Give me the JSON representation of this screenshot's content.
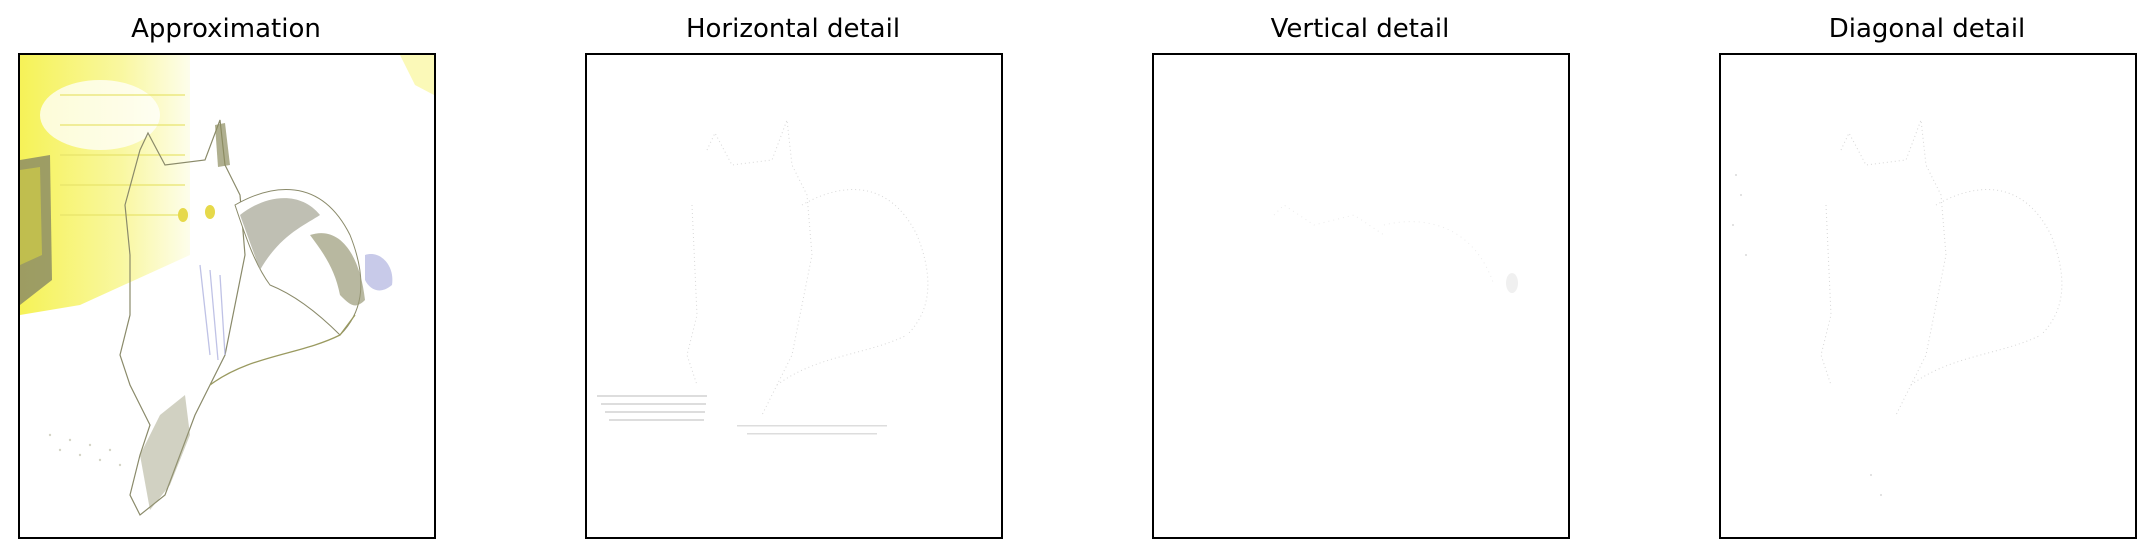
{
  "figure": {
    "panels": [
      {
        "title": "Approximation"
      },
      {
        "title": "Horizontal detail"
      },
      {
        "title": "Vertical detail"
      },
      {
        "title": "Diagonal detail"
      }
    ]
  },
  "colors": {
    "background": "#ffffff",
    "axes_border": "#000000",
    "highlight_yellow": "#f5f23a",
    "edge_gray": "#9a9a78",
    "shadow_gray": "#a9a99a",
    "blue_tint": "#b0b4e0"
  }
}
